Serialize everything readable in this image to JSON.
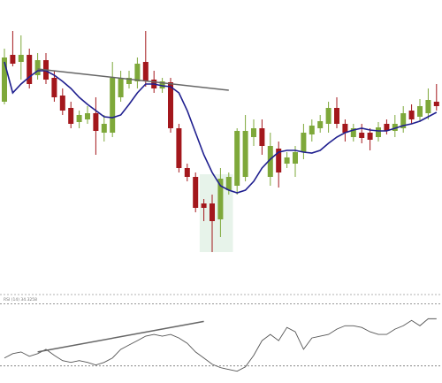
{
  "chart_data": [
    {
      "type": "candlestick",
      "up_color": "#7ea83a",
      "down_color": "#a3171c",
      "ma_color": "#1f1f8f",
      "trend_color": "#666666",
      "highlight_color": "#cfe8d6",
      "ylim": [
        0,
        330
      ],
      "open": [
        215,
        268,
        260,
        268,
        245,
        262,
        242,
        222,
        208,
        192,
        195,
        202,
        180,
        180,
        220,
        235,
        238,
        260,
        240,
        230,
        237,
        185,
        140,
        130,
        100,
        100,
        82,
        115,
        120,
        130,
        175,
        185,
        130,
        162,
        145,
        145,
        158,
        178,
        185,
        190,
        208,
        190,
        175,
        180,
        180,
        175,
        190,
        182,
        185,
        205,
        198,
        202,
        215
      ],
      "high": [
        275,
        295,
        290,
        275,
        270,
        270,
        250,
        230,
        215,
        205,
        210,
        220,
        200,
        260,
        250,
        250,
        265,
        295,
        250,
        242,
        242,
        190,
        145,
        135,
        105,
        110,
        140,
        135,
        185,
        200,
        195,
        195,
        180,
        170,
        158,
        165,
        190,
        195,
        200,
        215,
        220,
        195,
        190,
        190,
        185,
        192,
        195,
        200,
        210,
        212,
        218,
        230,
        235
      ],
      "low": [
        212,
        255,
        240,
        230,
        240,
        235,
        215,
        200,
        185,
        185,
        190,
        155,
        170,
        175,
        215,
        230,
        230,
        232,
        225,
        225,
        180,
        135,
        125,
        90,
        80,
        45,
        62,
        110,
        110,
        125,
        165,
        155,
        120,
        118,
        140,
        130,
        150,
        170,
        180,
        180,
        185,
        170,
        170,
        168,
        160,
        170,
        178,
        175,
        180,
        190,
        192,
        195,
        205
      ],
      "close": [
        265,
        258,
        268,
        235,
        262,
        240,
        220,
        205,
        190,
        200,
        202,
        182,
        190,
        242,
        242,
        242,
        258,
        238,
        230,
        238,
        185,
        140,
        130,
        95,
        95,
        80,
        128,
        130,
        182,
        182,
        185,
        165,
        165,
        135,
        152,
        158,
        180,
        188,
        193,
        208,
        190,
        180,
        185,
        174,
        172,
        186,
        182,
        190,
        202,
        195,
        210,
        217,
        210
      ],
      "moving_average": [
        260,
        225,
        235,
        243,
        250,
        250,
        245,
        238,
        230,
        220,
        212,
        205,
        198,
        197,
        200,
        212,
        225,
        235,
        235,
        233,
        232,
        225,
        205,
        180,
        155,
        135,
        120,
        115,
        112,
        115,
        125,
        140,
        150,
        158,
        160,
        160,
        158,
        157,
        160,
        168,
        175,
        180,
        183,
        185,
        183,
        182,
        182,
        185,
        188,
        190,
        193,
        198,
        203
      ],
      "trendline": {
        "start": {
          "index": 4,
          "value": 252
        },
        "end": {
          "index": 27,
          "value": 228
        }
      },
      "highlight": {
        "from_index": 24,
        "to_index": 27,
        "low": 45,
        "high": 133
      }
    },
    {
      "type": "line",
      "title": "RSI (14) 34.3258",
      "color": "#555555",
      "trend_color": "#666666",
      "ylim": [
        19,
        76
      ],
      "yticks": [
        30,
        70
      ],
      "grid": true,
      "values": [
        35.1,
        37.9,
        39.0,
        36.2,
        37.9,
        40.7,
        36.8,
        33.4,
        32.3,
        33.4,
        32.3,
        30.6,
        32.3,
        35.1,
        40.7,
        43.5,
        46.3,
        49.2,
        50.3,
        49.2,
        50.3,
        48.0,
        44.6,
        39.0,
        35.1,
        31.1,
        28.9,
        27.7,
        26.6,
        29.4,
        36.8,
        46.3,
        50.3,
        46.3,
        54.8,
        52.0,
        40.7,
        48.0,
        49.2,
        50.3,
        53.7,
        55.9,
        55.9,
        54.8,
        52.0,
        50.3,
        50.3,
        53.7,
        55.9,
        59.3,
        55.9,
        60.4,
        60.4
      ],
      "trendline": {
        "start": {
          "index": 4,
          "value": 39.0
        },
        "end": {
          "index": 24,
          "value": 58.7
        }
      }
    }
  ]
}
